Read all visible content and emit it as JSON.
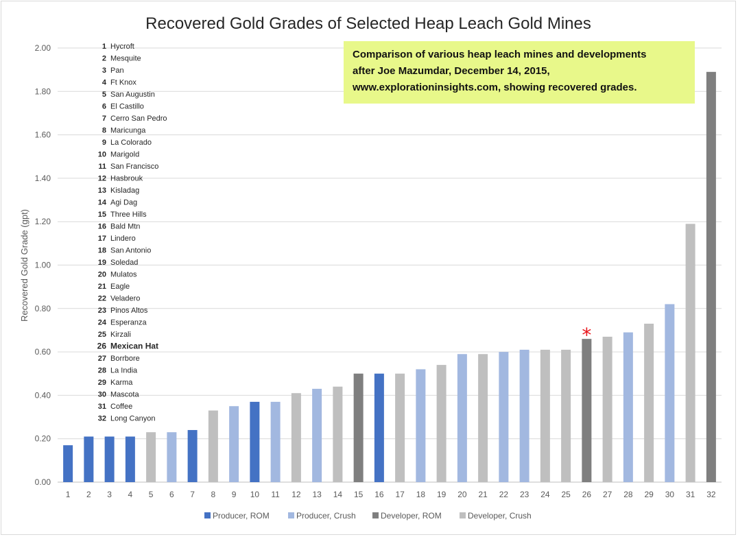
{
  "chart_data": {
    "type": "bar",
    "title": "Recovered Gold Grades of Selected Heap Leach Gold Mines",
    "ylabel": "Recovered Gold Grade (gpt)",
    "xlabel": "",
    "ylim": [
      0,
      2.0
    ],
    "ytick_labels": [
      "0.00",
      "0.20",
      "0.40",
      "0.60",
      "0.80",
      "1.00",
      "1.20",
      "1.40",
      "1.60",
      "1.80",
      "2.00"
    ],
    "grid": true,
    "categories": [
      "1",
      "2",
      "3",
      "4",
      "5",
      "6",
      "7",
      "8",
      "9",
      "10",
      "11",
      "12",
      "13",
      "14",
      "15",
      "16",
      "17",
      "18",
      "19",
      "20",
      "21",
      "22",
      "23",
      "24",
      "25",
      "26",
      "27",
      "28",
      "29",
      "30",
      "31",
      "32"
    ],
    "values": [
      0.17,
      0.21,
      0.21,
      0.21,
      0.23,
      0.23,
      0.24,
      0.33,
      0.35,
      0.37,
      0.37,
      0.41,
      0.43,
      0.44,
      0.5,
      0.5,
      0.5,
      0.52,
      0.54,
      0.59,
      0.59,
      0.6,
      0.61,
      0.61,
      0.61,
      0.66,
      0.67,
      0.69,
      0.73,
      0.82,
      1.19,
      1.89
    ],
    "bar_types": [
      "Producer, ROM",
      "Producer, ROM",
      "Producer, ROM",
      "Producer, ROM",
      "Developer, Crush",
      "Producer, Crush",
      "Producer, ROM",
      "Developer, Crush",
      "Producer, Crush",
      "Producer, ROM",
      "Producer, Crush",
      "Developer, Crush",
      "Producer, Crush",
      "Developer, Crush",
      "Developer, ROM",
      "Producer, ROM",
      "Developer, Crush",
      "Producer, Crush",
      "Developer, Crush",
      "Producer, Crush",
      "Developer, Crush",
      "Producer, Crush",
      "Producer, Crush",
      "Developer, Crush",
      "Developer, Crush",
      "Developer, ROM",
      "Developer, Crush",
      "Producer, Crush",
      "Developer, Crush",
      "Producer, Crush",
      "Developer, Crush",
      "Developer, ROM"
    ],
    "series_colors": {
      "Producer, ROM": "#4472c4",
      "Producer, Crush": "#a2b8e0",
      "Developer, ROM": "#7f7f7f",
      "Developer, Crush": "#bfbfbf"
    },
    "legend": [
      "Producer, ROM",
      "Producer, Crush",
      "Developer, ROM",
      "Developer, Crush"
    ],
    "legend_position": "bottom",
    "highlight": {
      "category_index": 25,
      "marker": "*",
      "color": "#e8141b"
    },
    "mine_list": [
      {
        "num": "1",
        "name": "Hycroft"
      },
      {
        "num": "2",
        "name": "Mesquite"
      },
      {
        "num": "3",
        "name": "Pan"
      },
      {
        "num": "4",
        "name": "Ft Knox"
      },
      {
        "num": "5",
        "name": "San Augustin"
      },
      {
        "num": "6",
        "name": "El Castillo"
      },
      {
        "num": "7",
        "name": "Cerro San Pedro"
      },
      {
        "num": "8",
        "name": "Maricunga"
      },
      {
        "num": "9",
        "name": "La Colorado"
      },
      {
        "num": "10",
        "name": "Marigold"
      },
      {
        "num": "11",
        "name": "San Francisco"
      },
      {
        "num": "12",
        "name": "Hasbrouk"
      },
      {
        "num": "13",
        "name": "Kisladag"
      },
      {
        "num": "14",
        "name": "Agi Dag"
      },
      {
        "num": "15",
        "name": "Three Hills"
      },
      {
        "num": "16",
        "name": "Bald Mtn"
      },
      {
        "num": "17",
        "name": "Lindero"
      },
      {
        "num": "18",
        "name": "San Antonio"
      },
      {
        "num": "19",
        "name": "Soledad"
      },
      {
        "num": "20",
        "name": "Mulatos"
      },
      {
        "num": "21",
        "name": "Eagle"
      },
      {
        "num": "22",
        "name": "Veladero"
      },
      {
        "num": "23",
        "name": "Pinos Altos"
      },
      {
        "num": "24",
        "name": "Esperanza"
      },
      {
        "num": "25",
        "name": "Kirzali"
      },
      {
        "num": "26",
        "name": "Mexican Hat",
        "bold": true
      },
      {
        "num": "27",
        "name": "Borrbore"
      },
      {
        "num": "28",
        "name": "La India"
      },
      {
        "num": "29",
        "name": "Karma"
      },
      {
        "num": "30",
        "name": "Mascota"
      },
      {
        "num": "31",
        "name": "Coffee"
      },
      {
        "num": "32",
        "name": "Long Canyon"
      }
    ],
    "annotation": {
      "lines": [
        "Comparison of various heap leach mines and developments",
        "after Joe Mazumdar, December 14, 2015,",
        "www.explorationinsights.com, showing recovered grades."
      ],
      "background": "#e8f88a"
    }
  }
}
